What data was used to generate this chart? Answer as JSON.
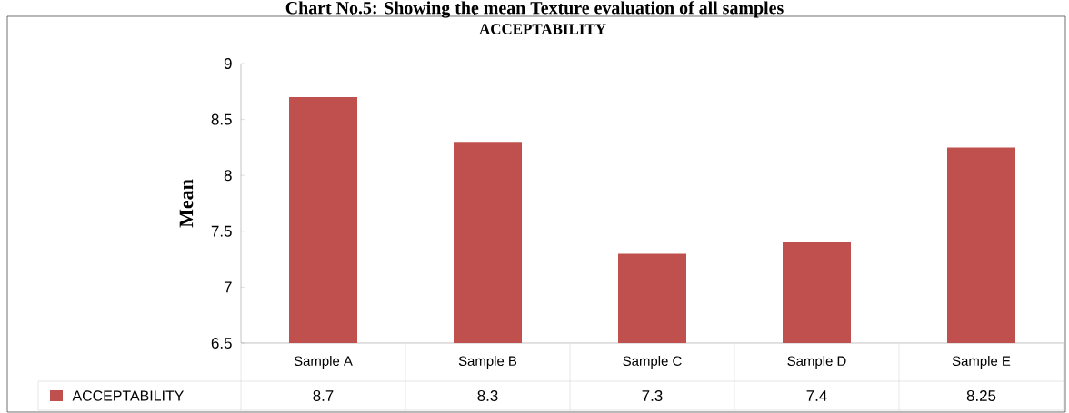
{
  "chart_data": {
    "type": "bar",
    "title": "Chart No.5: Showing the mean Texture evaluation of all samples",
    "subtitle": "ACCEPTABILITY",
    "ylabel": "Mean",
    "categories": [
      "Sample A",
      "Sample B",
      "Sample C",
      "Sample D",
      "Sample E"
    ],
    "series": [
      {
        "name": "ACCEPTABILITY",
        "color": "#c0504d",
        "values": [
          8.7,
          8.3,
          7.3,
          7.4,
          8.25
        ]
      }
    ],
    "ylim": [
      6.5,
      9
    ],
    "yticks": [
      6.5,
      7,
      7.5,
      8,
      8.5,
      9
    ],
    "data_labels": true,
    "legend": "bottom left",
    "grid": false
  }
}
